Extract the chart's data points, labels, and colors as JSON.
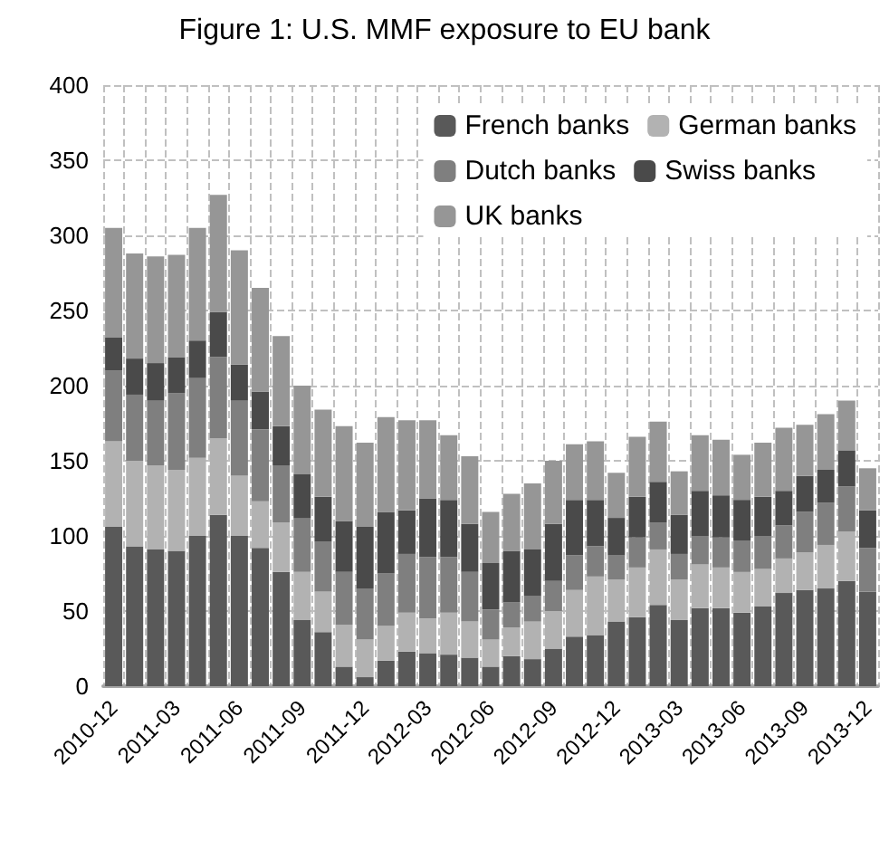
{
  "chart_data": {
    "type": "bar",
    "title": "Figure 1: U.S. MMF exposure to EU bank",
    "stacked": true,
    "grid": true,
    "legend": "top right",
    "categories": [
      "2010-12",
      null,
      null,
      "2011-03",
      null,
      null,
      "2011-06",
      null,
      null,
      "2011-09",
      null,
      null,
      "2011-12",
      null,
      null,
      "2012-03",
      null,
      null,
      "2012-06",
      null,
      null,
      "2012-09",
      null,
      null,
      "2012-12",
      null,
      null,
      "2013-03",
      null,
      null,
      "2013-06",
      null,
      null,
      "2013-09",
      null,
      null,
      "2013-12"
    ],
    "ylim": [
      0,
      400
    ],
    "yticks": [
      0,
      50,
      100,
      150,
      200,
      250,
      300,
      350,
      400
    ],
    "series": [
      {
        "name": "French banks",
        "color": "#595959",
        "values": [
          106,
          93,
          91,
          90,
          100,
          114,
          100,
          92,
          76,
          44,
          36,
          13,
          6,
          17,
          23,
          22,
          21,
          19,
          13,
          20,
          18,
          25,
          33,
          34,
          43,
          46,
          54,
          44,
          52,
          52,
          49,
          53,
          62,
          64,
          65,
          70,
          63
        ]
      },
      {
        "name": "German banks",
        "color": "#b2b2b2",
        "values": [
          57,
          57,
          56,
          54,
          52,
          51,
          40,
          31,
          33,
          32,
          27,
          28,
          25,
          23,
          26,
          23,
          28,
          24,
          18,
          19,
          25,
          25,
          31,
          39,
          28,
          33,
          37,
          27,
          29,
          27,
          27,
          25,
          23,
          25,
          29,
          33,
          0
        ]
      },
      {
        "name": "Dutch banks",
        "color": "#7f7f7f",
        "values": [
          47,
          44,
          43,
          51,
          53,
          54,
          50,
          48,
          38,
          36,
          33,
          35,
          34,
          35,
          39,
          41,
          37,
          33,
          20,
          17,
          17,
          20,
          23,
          20,
          16,
          20,
          18,
          17,
          19,
          20,
          21,
          22,
          22,
          27,
          28,
          30,
          29
        ]
      },
      {
        "name": "Swiss banks",
        "color": "#4a4a4a",
        "values": [
          22,
          24,
          25,
          24,
          25,
          30,
          24,
          25,
          26,
          29,
          30,
          34,
          41,
          41,
          29,
          39,
          38,
          32,
          31,
          34,
          31,
          38,
          37,
          31,
          25,
          27,
          27,
          26,
          30,
          28,
          27,
          26,
          23,
          24,
          22,
          24,
          25
        ]
      },
      {
        "name": "UK banks",
        "color": "#969696",
        "values": [
          73,
          70,
          71,
          68,
          75,
          78,
          76,
          69,
          60,
          59,
          58,
          63,
          56,
          63,
          60,
          52,
          43,
          45,
          34,
          38,
          44,
          42,
          37,
          39,
          30,
          40,
          40,
          29,
          37,
          37,
          30,
          36,
          42,
          34,
          37,
          33,
          28
        ]
      }
    ]
  }
}
